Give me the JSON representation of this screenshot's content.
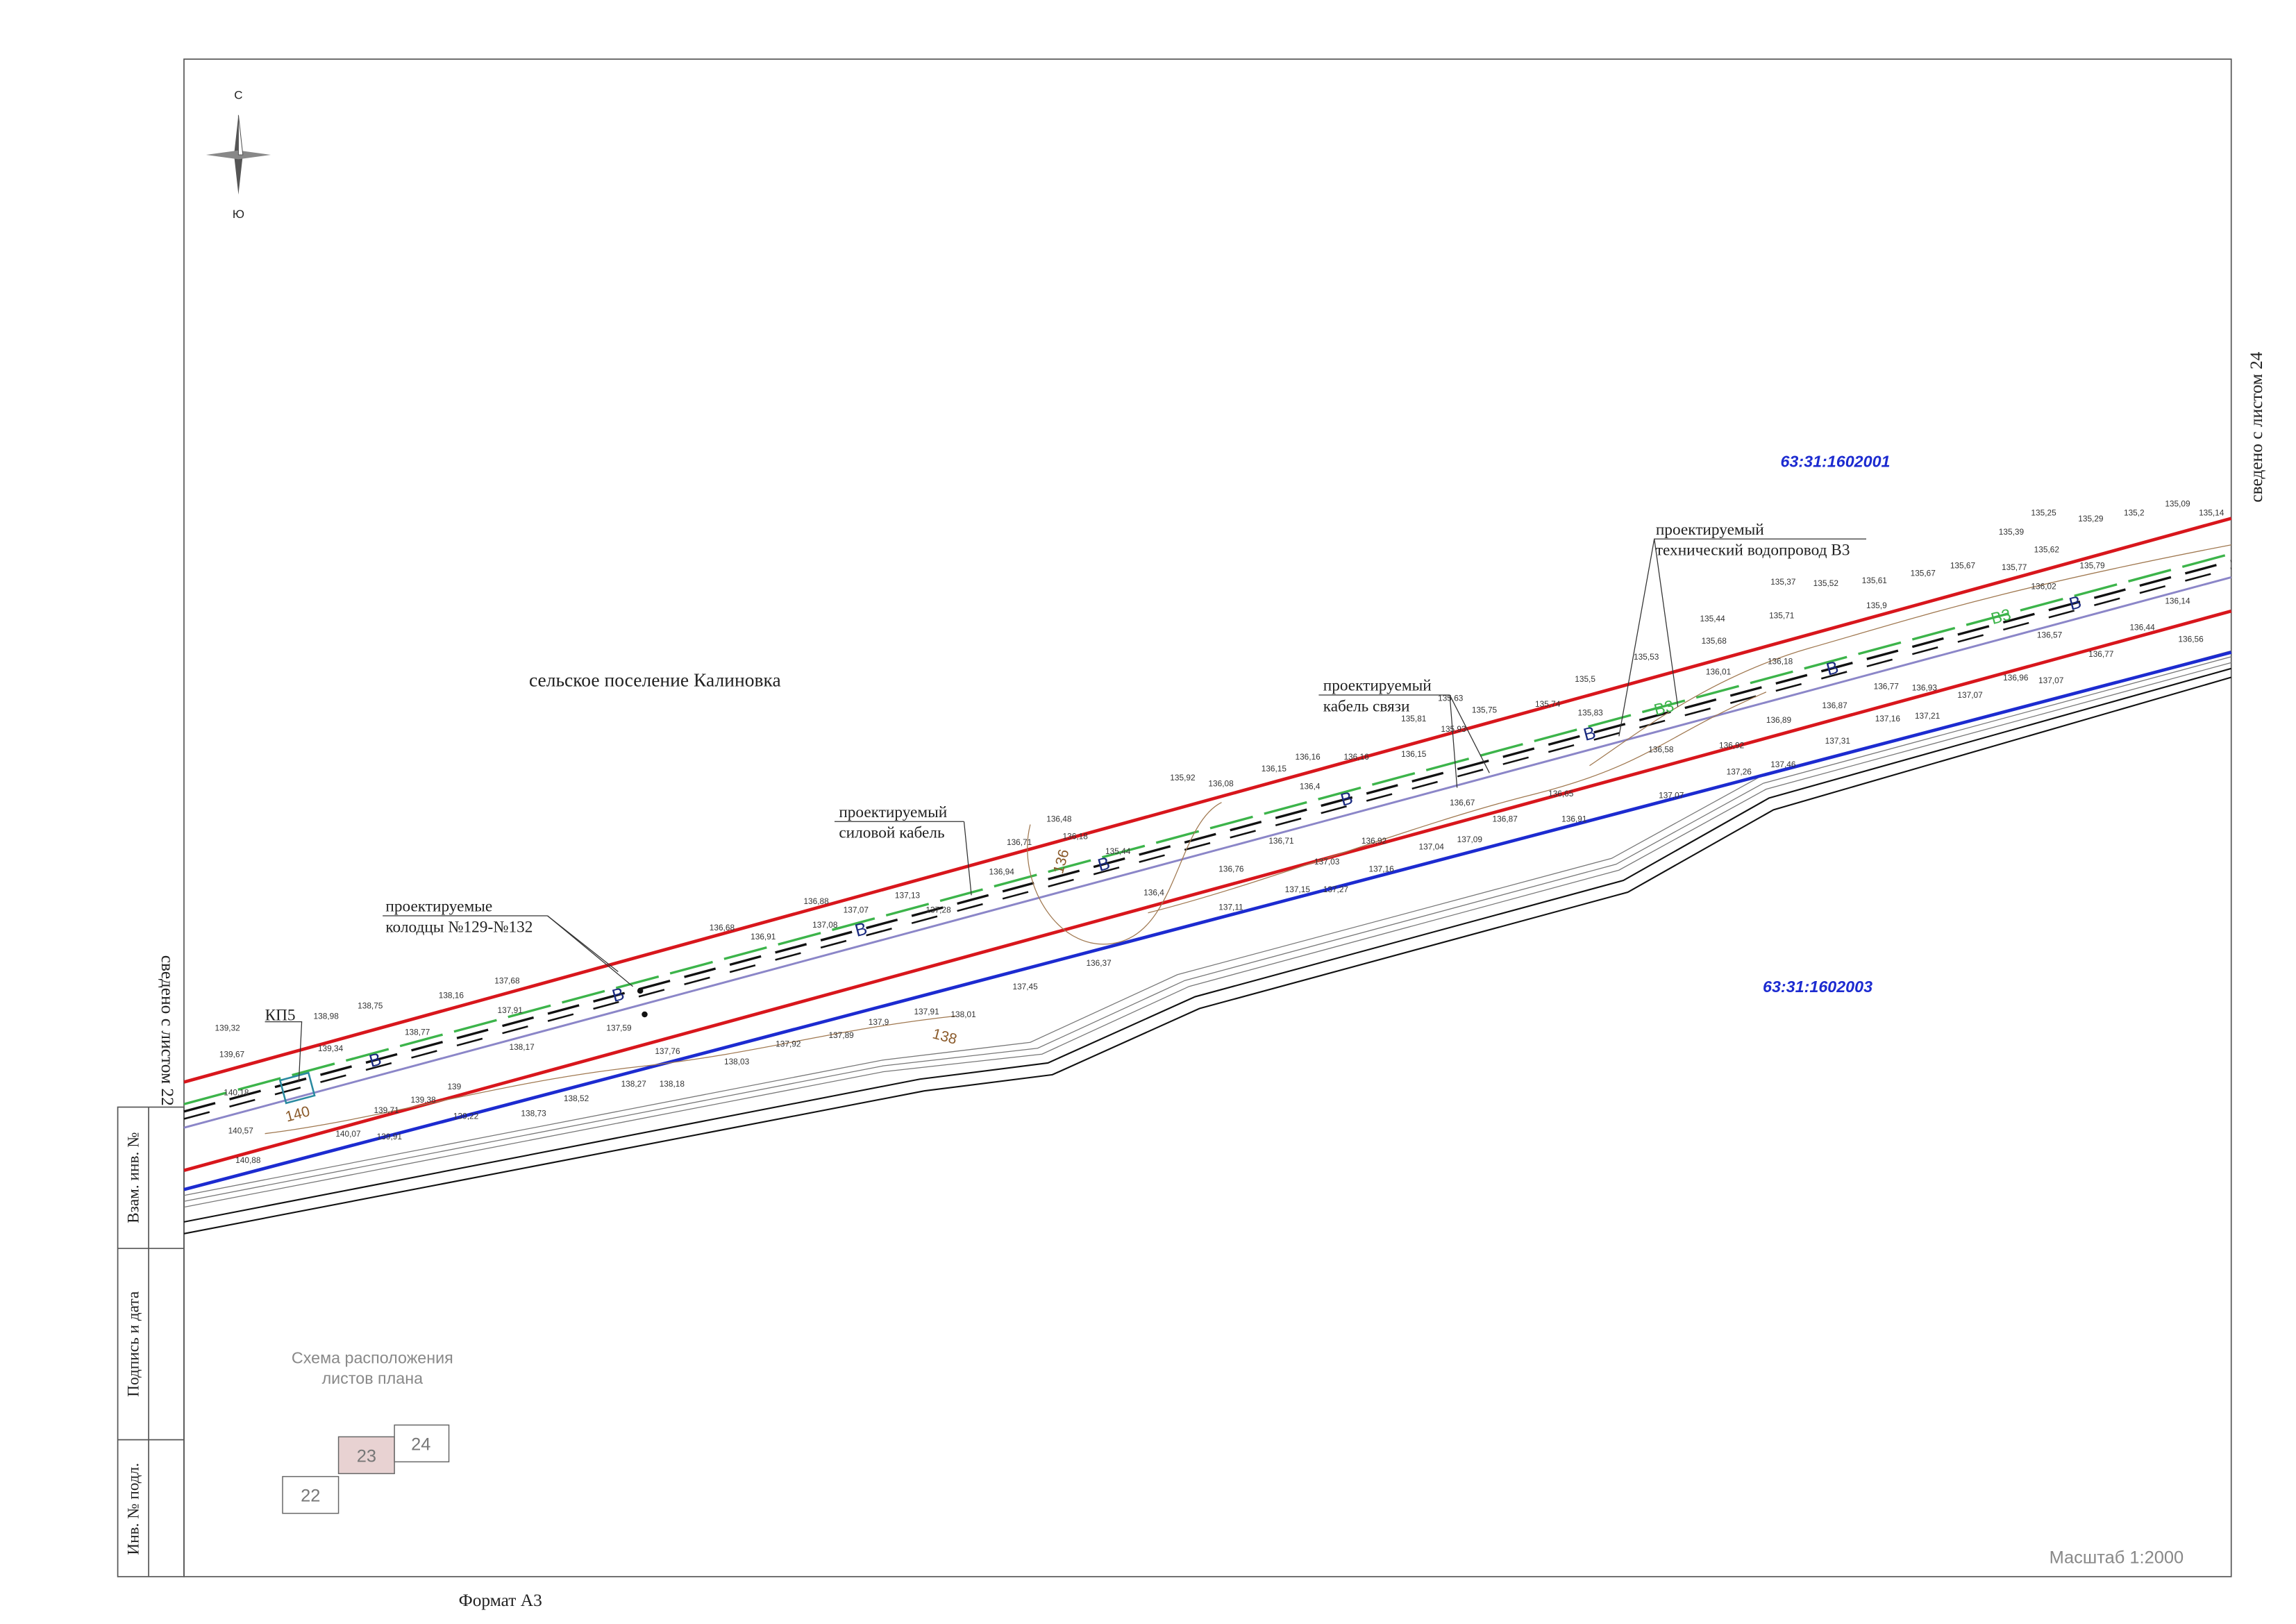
{
  "north": {
    "top": "С",
    "bottom": "Ю"
  },
  "settlement": "сельское поселение Калиновка",
  "parcels": [
    "63:31:1602001",
    "63:31:1602003"
  ],
  "joins": {
    "right": "сведено с листом 24",
    "left": "сведено с листом 22"
  },
  "callouts": [
    {
      "line1": "проектируемый",
      "line2": "технический водопровод В3"
    },
    {
      "line1": "проектируемый",
      "line2": "кабель связи"
    },
    {
      "line1": "проектируемый",
      "line2": "силовой кабель"
    },
    {
      "line1": "проектируемые",
      "line2": "колодцы №129-№132"
    }
  ],
  "kp": "КП5",
  "stamp": [
    "Взам. инв. №",
    "Подпись и дата",
    "Инв. № подл."
  ],
  "scheme": {
    "title1": "Схема расположения",
    "title2": "листов плана",
    "sheets": [
      "22",
      "23",
      "24"
    ]
  },
  "scale": "Масштаб  1:2000",
  "format": "Формат А3",
  "markers": {
    "water": "В",
    "pipe": "В3"
  },
  "contours": [
    "140",
    "138",
    "136"
  ],
  "elevations": [
    "139,32",
    "139,67",
    "140,18",
    "140,57",
    "140,88",
    "138,98",
    "139,34",
    "140,07",
    "139,71",
    "139,91",
    "138,75",
    "138,77",
    "139",
    "139,38",
    "139,22",
    "138,16",
    "137,68",
    "137,91",
    "138,17",
    "138,52",
    "138,73",
    "138,27",
    "138,18",
    "137,59",
    "137,76",
    "138,03",
    "137,92",
    "137,89",
    "137,9",
    "137,91",
    "138,01",
    "137,45",
    "136,68",
    "136,91",
    "136,88",
    "137,08",
    "137,07",
    "137,13",
    "137,28",
    "136,94",
    "136,71",
    "136,48",
    "136,18",
    "135,44",
    "136,4",
    "136,37",
    "136,76",
    "137,11",
    "137,15",
    "137,27",
    "137,16",
    "136,92",
    "137,04",
    "137,09",
    "135,92",
    "136,08",
    "136,15",
    "136,16",
    "136,4",
    "136,16",
    "136,15",
    "135,81",
    "135,63",
    "135,75",
    "135,93",
    "135,74",
    "135,83",
    "135,5",
    "135,53",
    "135,44",
    "135,68",
    "136,01",
    "136,18",
    "135,71",
    "135,37",
    "135,52",
    "135,61",
    "135,9",
    "135,67",
    "135,67",
    "135,77",
    "135,39",
    "135,25",
    "135,29",
    "135,2",
    "135,09",
    "135,14",
    "135,62",
    "135,79",
    "136,02",
    "136,14",
    "136,44",
    "136,56",
    "136,77",
    "136,57",
    "137,07",
    "136,96",
    "137,07",
    "136,93",
    "136,77",
    "137,21",
    "137,16",
    "137,31",
    "136,87",
    "136,89",
    "136,92",
    "137,26",
    "137,46",
    "137,07",
    "136,58",
    "136,65",
    "136,91",
    "136,67",
    "136,87",
    "137,03",
    "136,71"
  ]
}
